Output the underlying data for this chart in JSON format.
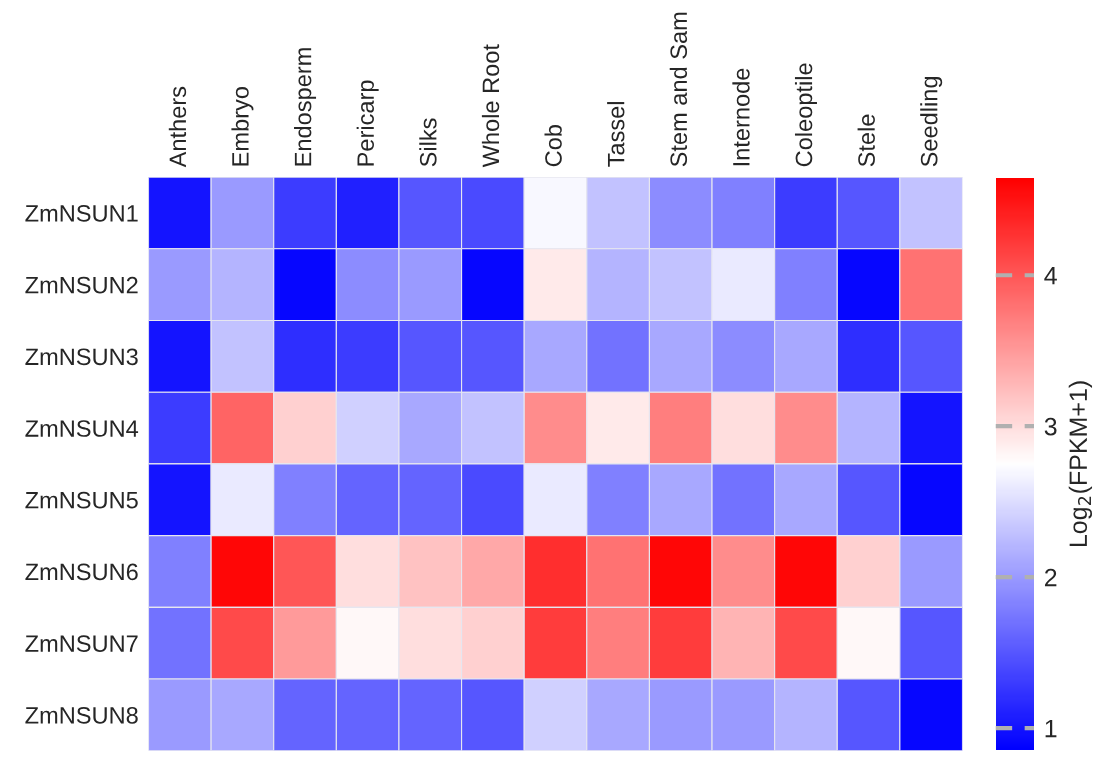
{
  "chart_data": {
    "type": "heatmap",
    "categories": [
      "Anthers",
      "Embryo",
      "Endosperm",
      "Pericarp",
      "Silks",
      "Whole Root",
      "Cob",
      "Tassel",
      "Stem and Sam",
      "Internode",
      "Coleoptile",
      "Stele",
      "Seedling"
    ],
    "y_categories": [
      "ZmNSUN1",
      "ZmNSUN2",
      "ZmNSUN3",
      "ZmNSUN4",
      "ZmNSUN5",
      "ZmNSUN6",
      "ZmNSUN7",
      "ZmNSUN8"
    ],
    "cells": [
      [
        1.0,
        2.0,
        1.3,
        1.1,
        1.5,
        1.4,
        2.7,
        2.3,
        1.9,
        1.8,
        1.3,
        1.5,
        2.3
      ],
      [
        2.0,
        2.2,
        0.9,
        1.9,
        2.0,
        0.9,
        2.9,
        2.2,
        2.3,
        2.6,
        1.8,
        0.9,
        3.8
      ],
      [
        1.0,
        2.3,
        1.2,
        1.3,
        1.5,
        1.5,
        2.1,
        1.7,
        2.1,
        1.9,
        2.1,
        1.2,
        1.5
      ],
      [
        1.3,
        3.9,
        3.1,
        2.4,
        2.1,
        2.3,
        3.6,
        2.9,
        3.7,
        3.0,
        3.6,
        2.2,
        1.0
      ],
      [
        1.0,
        2.6,
        1.8,
        1.6,
        1.6,
        1.4,
        2.6,
        1.8,
        2.1,
        1.7,
        2.1,
        1.5,
        0.9
      ],
      [
        1.8,
        4.6,
        4.0,
        3.0,
        3.2,
        3.4,
        4.3,
        3.8,
        4.6,
        3.6,
        4.6,
        3.1,
        2.0
      ],
      [
        1.7,
        4.1,
        3.5,
        2.8,
        3.0,
        3.1,
        4.2,
        3.7,
        4.2,
        3.3,
        4.1,
        2.8,
        1.5
      ],
      [
        2.0,
        2.1,
        1.6,
        1.6,
        1.6,
        1.5,
        2.4,
        2.1,
        2.0,
        2.0,
        2.2,
        1.5,
        0.9
      ]
    ],
    "clim": [
      0.85,
      4.65
    ],
    "cticks": [
      1,
      2,
      3,
      4
    ],
    "clabel": "Log$_{2}$(FPKM+1)"
  }
}
